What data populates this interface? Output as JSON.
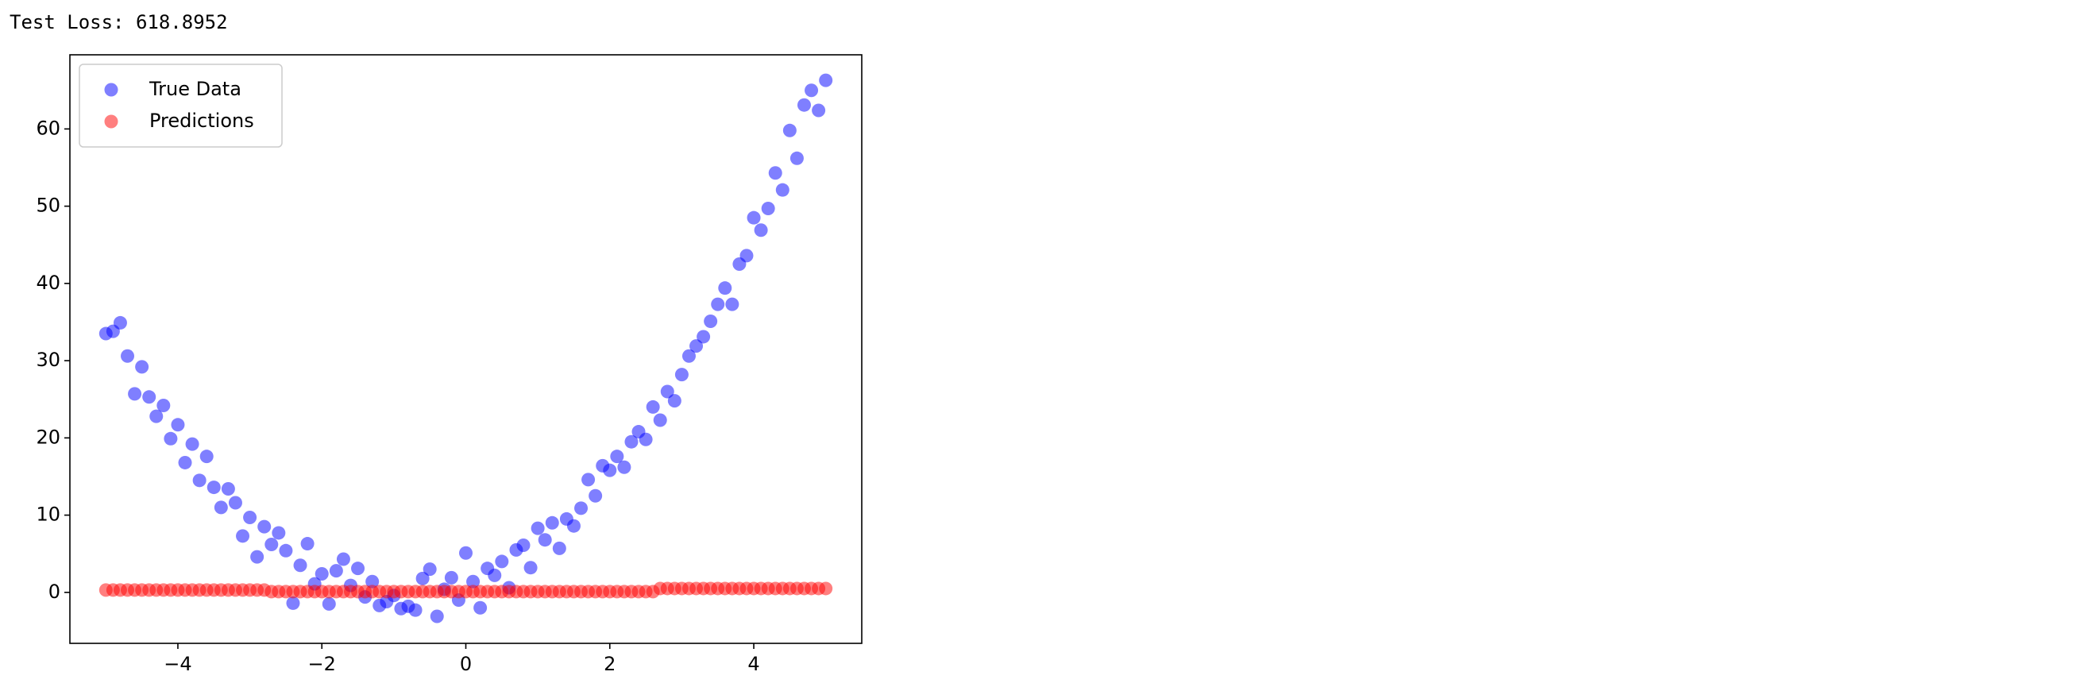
{
  "output_text": "Test Loss: 618.8952",
  "chart_data": {
    "type": "scatter",
    "x": [
      -5.0,
      -4.9,
      -4.8,
      -4.7,
      -4.6,
      -4.5,
      -4.4,
      -4.3,
      -4.2,
      -4.1,
      -4.0,
      -3.9,
      -3.8,
      -3.7,
      -3.6,
      -3.5,
      -3.4,
      -3.3,
      -3.2,
      -3.1,
      -3.0,
      -2.9,
      -2.8,
      -2.7,
      -2.6,
      -2.5,
      -2.4,
      -2.3,
      -2.2,
      -2.1,
      -2.0,
      -1.9,
      -1.8,
      -1.7,
      -1.6,
      -1.5,
      -1.4,
      -1.3,
      -1.2,
      -1.1,
      -1.0,
      -0.9,
      -0.8,
      -0.7,
      -0.6,
      -0.5,
      -0.4,
      -0.3,
      -0.2,
      -0.1,
      0.0,
      0.1,
      0.2,
      0.3,
      0.4,
      0.5,
      0.6,
      0.7,
      0.8,
      0.9,
      1.0,
      1.1,
      1.2,
      1.3,
      1.4,
      1.5,
      1.6,
      1.7,
      1.8,
      1.9,
      2.0,
      2.1,
      2.2,
      2.3,
      2.4,
      2.5,
      2.6,
      2.7,
      2.8,
      2.9,
      3.0,
      3.1,
      3.2,
      3.3,
      3.4,
      3.5,
      3.6,
      3.7,
      3.8,
      3.9,
      4.0,
      4.1,
      4.2,
      4.3,
      4.4,
      4.5,
      4.6,
      4.7,
      4.8,
      4.9,
      5.0
    ],
    "series": [
      {
        "name": "True Data",
        "color": "#0000ff",
        "values": [
          33.5,
          33.8,
          34.9,
          30.6,
          25.7,
          29.2,
          25.3,
          22.8,
          24.2,
          19.9,
          21.7,
          16.8,
          19.2,
          14.5,
          17.6,
          13.6,
          11.0,
          13.4,
          11.6,
          7.3,
          9.7,
          4.6,
          8.5,
          6.2,
          7.7,
          5.4,
          -1.4,
          3.5,
          6.3,
          1.1,
          2.4,
          -1.5,
          2.8,
          4.3,
          0.9,
          3.1,
          -0.6,
          1.4,
          -1.7,
          -1.2,
          -0.4,
          -2.1,
          -1.8,
          -2.3,
          1.8,
          3.0,
          -3.1,
          0.4,
          1.9,
          -1.0,
          5.1,
          1.4,
          -2.0,
          3.1,
          2.2,
          4.0,
          0.6,
          5.5,
          6.1,
          3.2,
          8.3,
          6.8,
          9.0,
          5.7,
          9.5,
          8.6,
          10.9,
          14.6,
          12.5,
          16.4,
          15.8,
          17.6,
          16.2,
          19.5,
          20.8,
          19.8,
          24.0,
          22.3,
          26.0,
          24.8,
          28.2,
          30.6,
          31.9,
          33.1,
          35.1,
          37.3,
          39.4,
          37.3,
          42.5,
          43.6,
          48.5,
          46.9,
          49.7,
          54.3,
          52.1,
          59.8,
          56.2,
          63.1,
          65.0,
          62.4,
          66.3
        ]
      },
      {
        "name": "Predictions",
        "color": "#ff0000",
        "values": [
          0.3,
          0.3,
          0.3,
          0.3,
          0.3,
          0.3,
          0.3,
          0.3,
          0.3,
          0.3,
          0.3,
          0.3,
          0.3,
          0.3,
          0.3,
          0.3,
          0.3,
          0.3,
          0.3,
          0.3,
          0.3,
          0.3,
          0.3,
          0.1,
          0.1,
          0.1,
          0.1,
          0.1,
          0.1,
          0.1,
          0.1,
          0.1,
          0.1,
          0.1,
          0.1,
          0.1,
          0.1,
          0.1,
          0.1,
          0.1,
          0.1,
          0.1,
          0.1,
          0.1,
          0.1,
          0.1,
          0.1,
          0.1,
          0.1,
          0.1,
          0.1,
          0.1,
          0.1,
          0.1,
          0.1,
          0.1,
          0.1,
          0.1,
          0.1,
          0.1,
          0.1,
          0.1,
          0.1,
          0.1,
          0.1,
          0.1,
          0.1,
          0.1,
          0.1,
          0.1,
          0.1,
          0.1,
          0.1,
          0.1,
          0.1,
          0.1,
          0.1,
          0.5,
          0.5,
          0.5,
          0.5,
          0.5,
          0.5,
          0.5,
          0.5,
          0.5,
          0.5,
          0.5,
          0.5,
          0.5,
          0.5,
          0.5,
          0.5,
          0.5,
          0.5,
          0.5,
          0.5,
          0.5,
          0.5,
          0.5,
          0.5
        ]
      }
    ],
    "alpha": 0.5,
    "xlim": [
      -5.5,
      5.5
    ],
    "ylim": [
      -6.6,
      69.6
    ],
    "xticks": [
      {
        "value": -4,
        "label": "−4"
      },
      {
        "value": -2,
        "label": "−2"
      },
      0,
      2,
      4
    ],
    "yticks": [
      0,
      10,
      20,
      30,
      40,
      50,
      60
    ],
    "legend": "upper left"
  }
}
